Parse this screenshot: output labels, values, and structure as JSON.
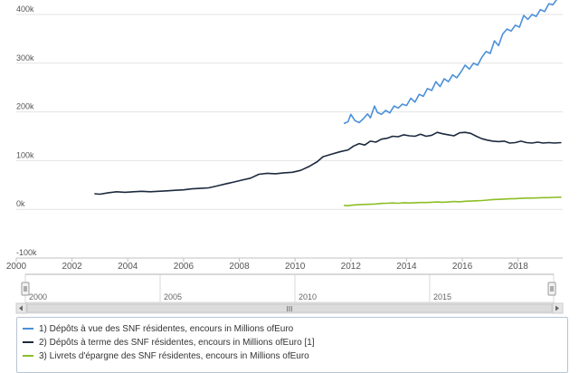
{
  "chart_data": {
    "type": "line",
    "y_axis": {
      "min": -100000,
      "max": 400000,
      "ticks": [
        {
          "value": 400000,
          "label": "400k"
        },
        {
          "value": 300000,
          "label": "300k"
        },
        {
          "value": 200000,
          "label": "200k"
        },
        {
          "value": 100000,
          "label": "100k"
        },
        {
          "value": 0,
          "label": "0k"
        },
        {
          "value": -100000,
          "label": "-100k"
        }
      ],
      "grid": true
    },
    "x_axis": {
      "min": 2000,
      "max": 2019.6,
      "ticks": [
        "2000",
        "2002",
        "2004",
        "2006",
        "2008",
        "2010",
        "2012",
        "2014",
        "2016",
        "2018"
      ]
    },
    "navigator": {
      "ticks": [
        "2000",
        "2005",
        "2010",
        "2015"
      ],
      "scrollbar_glyph": "III"
    },
    "legend_position": "bottom",
    "series": [
      {
        "name": "1) Dépôts à vue des SNF résidentes, encours in Millions ofEuro",
        "color": "#4a90d9",
        "points": [
          [
            2011.75,
            176000
          ],
          [
            2011.9,
            180000
          ],
          [
            2012.0,
            195000
          ],
          [
            2012.15,
            182000
          ],
          [
            2012.3,
            178000
          ],
          [
            2012.45,
            186000
          ],
          [
            2012.6,
            196000
          ],
          [
            2012.7,
            188000
          ],
          [
            2012.85,
            212000
          ],
          [
            2012.95,
            199000
          ],
          [
            2013.1,
            195000
          ],
          [
            2013.25,
            203000
          ],
          [
            2013.4,
            198000
          ],
          [
            2013.55,
            212000
          ],
          [
            2013.7,
            208000
          ],
          [
            2013.85,
            216000
          ],
          [
            2014.0,
            213000
          ],
          [
            2014.15,
            228000
          ],
          [
            2014.3,
            220000
          ],
          [
            2014.45,
            236000
          ],
          [
            2014.6,
            232000
          ],
          [
            2014.75,
            248000
          ],
          [
            2014.9,
            244000
          ],
          [
            2015.05,
            262000
          ],
          [
            2015.2,
            252000
          ],
          [
            2015.35,
            268000
          ],
          [
            2015.5,
            262000
          ],
          [
            2015.65,
            276000
          ],
          [
            2015.8,
            270000
          ],
          [
            2015.95,
            282000
          ],
          [
            2016.1,
            296000
          ],
          [
            2016.25,
            288000
          ],
          [
            2016.4,
            300000
          ],
          [
            2016.55,
            296000
          ],
          [
            2016.7,
            312000
          ],
          [
            2016.85,
            324000
          ],
          [
            2017.0,
            320000
          ],
          [
            2017.15,
            346000
          ],
          [
            2017.3,
            336000
          ],
          [
            2017.45,
            360000
          ],
          [
            2017.6,
            370000
          ],
          [
            2017.75,
            366000
          ],
          [
            2017.9,
            378000
          ],
          [
            2018.05,
            374000
          ],
          [
            2018.2,
            398000
          ],
          [
            2018.35,
            390000
          ],
          [
            2018.5,
            400000
          ],
          [
            2018.65,
            396000
          ],
          [
            2018.8,
            410000
          ],
          [
            2018.95,
            406000
          ],
          [
            2019.1,
            422000
          ],
          [
            2019.25,
            420000
          ],
          [
            2019.4,
            432000
          ],
          [
            2019.55,
            438000
          ]
        ]
      },
      {
        "name": "2) Dépôts à terme des SNF résidentes, encours in Millions ofEuro [1]",
        "color": "#1c2a3e",
        "points": [
          [
            2002.8,
            32000
          ],
          [
            2003.0,
            31000
          ],
          [
            2003.3,
            34000
          ],
          [
            2003.6,
            36000
          ],
          [
            2003.9,
            35000
          ],
          [
            2004.2,
            36000
          ],
          [
            2004.5,
            37000
          ],
          [
            2004.8,
            36000
          ],
          [
            2005.1,
            37000
          ],
          [
            2005.4,
            38000
          ],
          [
            2005.7,
            39000
          ],
          [
            2006.0,
            40000
          ],
          [
            2006.3,
            42000
          ],
          [
            2006.6,
            43000
          ],
          [
            2006.9,
            44000
          ],
          [
            2007.2,
            48000
          ],
          [
            2007.5,
            52000
          ],
          [
            2007.8,
            56000
          ],
          [
            2008.1,
            60000
          ],
          [
            2008.4,
            64000
          ],
          [
            2008.7,
            72000
          ],
          [
            2009.0,
            74000
          ],
          [
            2009.3,
            73000
          ],
          [
            2009.6,
            75000
          ],
          [
            2009.9,
            76000
          ],
          [
            2010.2,
            80000
          ],
          [
            2010.5,
            88000
          ],
          [
            2010.8,
            98000
          ],
          [
            2011.0,
            108000
          ],
          [
            2011.3,
            113000
          ],
          [
            2011.6,
            118000
          ],
          [
            2011.9,
            122000
          ],
          [
            2012.1,
            130000
          ],
          [
            2012.3,
            135000
          ],
          [
            2012.5,
            132000
          ],
          [
            2012.7,
            140000
          ],
          [
            2012.9,
            138000
          ],
          [
            2013.1,
            144000
          ],
          [
            2013.3,
            146000
          ],
          [
            2013.5,
            150000
          ],
          [
            2013.7,
            149000
          ],
          [
            2013.9,
            153000
          ],
          [
            2014.1,
            151000
          ],
          [
            2014.3,
            150000
          ],
          [
            2014.5,
            154000
          ],
          [
            2014.7,
            150000
          ],
          [
            2014.9,
            152000
          ],
          [
            2015.1,
            158000
          ],
          [
            2015.3,
            155000
          ],
          [
            2015.5,
            153000
          ],
          [
            2015.7,
            151000
          ],
          [
            2015.9,
            157000
          ],
          [
            2016.1,
            158000
          ],
          [
            2016.3,
            156000
          ],
          [
            2016.5,
            150000
          ],
          [
            2016.7,
            145000
          ],
          [
            2016.9,
            142000
          ],
          [
            2017.1,
            140000
          ],
          [
            2017.3,
            139000
          ],
          [
            2017.5,
            140000
          ],
          [
            2017.7,
            136000
          ],
          [
            2017.9,
            137000
          ],
          [
            2018.1,
            140000
          ],
          [
            2018.3,
            137000
          ],
          [
            2018.5,
            136000
          ],
          [
            2018.7,
            138000
          ],
          [
            2018.9,
            136000
          ],
          [
            2019.1,
            137000
          ],
          [
            2019.3,
            136000
          ],
          [
            2019.55,
            137000
          ]
        ]
      },
      {
        "name": "3) Livrets d'épargne des SNF résidentes, encours in Millions ofEuro",
        "color": "#8cbf26",
        "points": [
          [
            2011.75,
            8000
          ],
          [
            2011.9,
            7500
          ],
          [
            2012.1,
            9000
          ],
          [
            2012.3,
            9500
          ],
          [
            2012.5,
            10000
          ],
          [
            2012.7,
            10500
          ],
          [
            2012.9,
            11000
          ],
          [
            2013.1,
            12000
          ],
          [
            2013.3,
            12500
          ],
          [
            2013.5,
            13000
          ],
          [
            2013.7,
            12500
          ],
          [
            2013.9,
            13500
          ],
          [
            2014.1,
            13000
          ],
          [
            2014.3,
            13500
          ],
          [
            2014.5,
            14000
          ],
          [
            2014.7,
            14000
          ],
          [
            2014.9,
            14500
          ],
          [
            2015.1,
            15000
          ],
          [
            2015.3,
            14500
          ],
          [
            2015.5,
            15000
          ],
          [
            2015.7,
            16000
          ],
          [
            2015.9,
            15500
          ],
          [
            2016.1,
            16500
          ],
          [
            2016.3,
            17000
          ],
          [
            2016.5,
            17500
          ],
          [
            2016.7,
            18000
          ],
          [
            2016.9,
            19000
          ],
          [
            2017.1,
            20000
          ],
          [
            2017.3,
            20500
          ],
          [
            2017.5,
            21000
          ],
          [
            2017.7,
            21500
          ],
          [
            2017.9,
            22000
          ],
          [
            2018.1,
            22500
          ],
          [
            2018.3,
            23000
          ],
          [
            2018.5,
            23000
          ],
          [
            2018.7,
            23500
          ],
          [
            2018.9,
            24000
          ],
          [
            2019.1,
            24000
          ],
          [
            2019.3,
            24500
          ],
          [
            2019.55,
            25000
          ]
        ]
      }
    ]
  }
}
